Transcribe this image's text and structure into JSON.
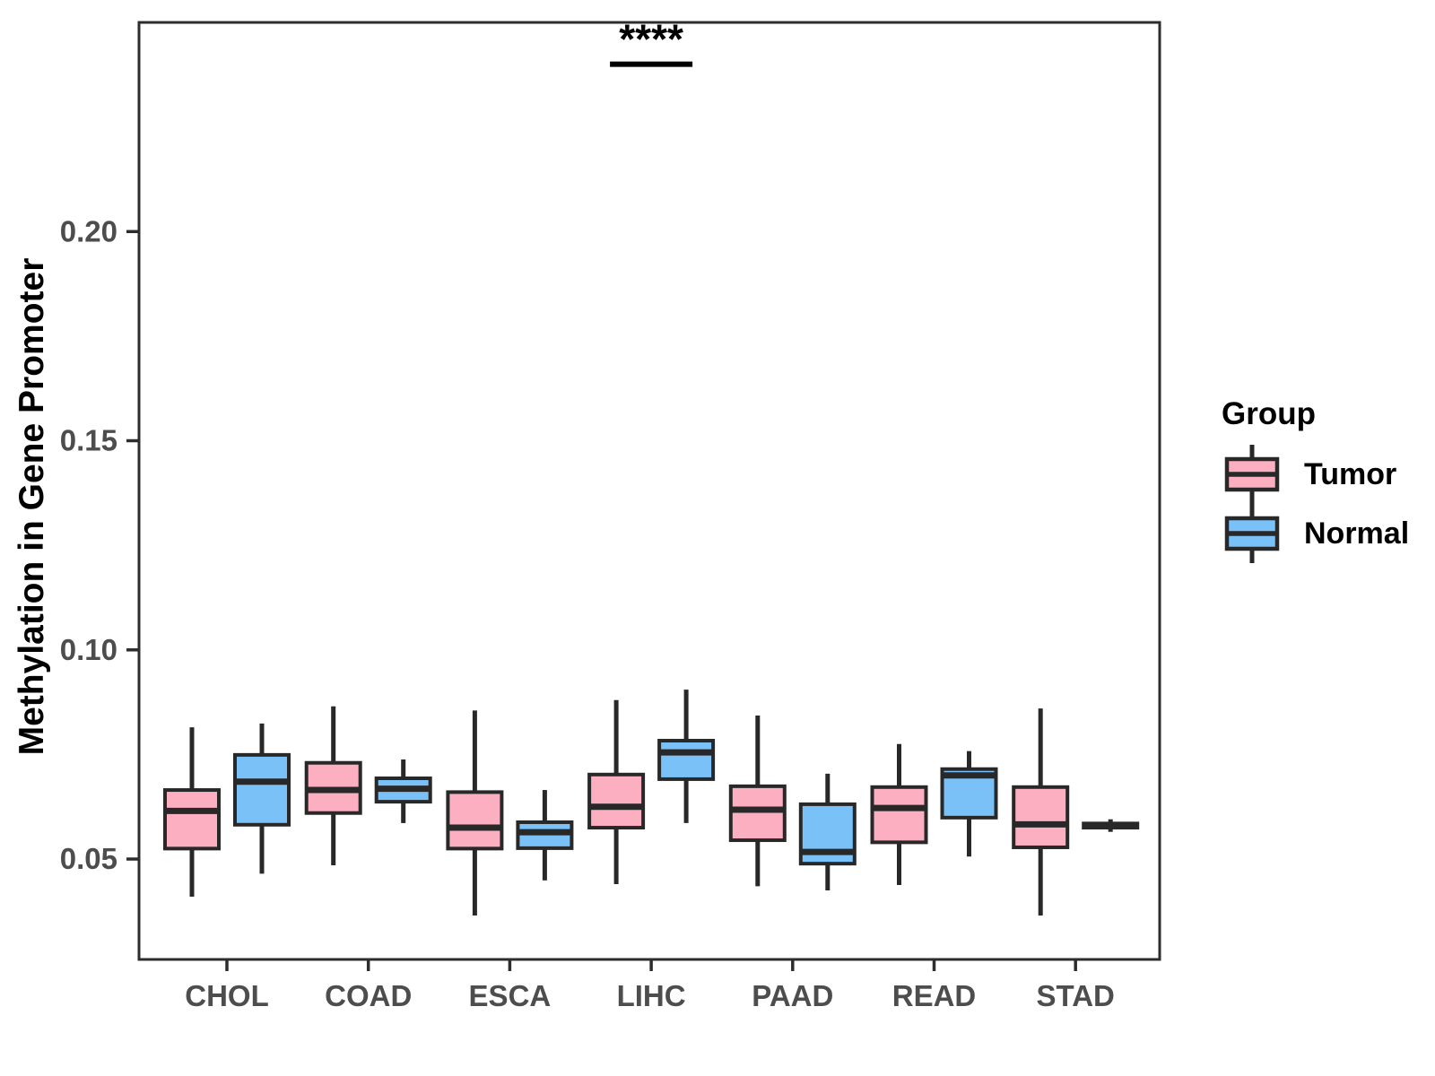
{
  "chart_data": {
    "type": "boxplot",
    "title": "",
    "xlabel": "",
    "ylabel": "Methylation in Gene Promoter",
    "ylim": [
      0.026,
      0.25
    ],
    "grid": false,
    "yticks": [
      {
        "value": 0.05,
        "label": "0.05"
      },
      {
        "value": 0.1,
        "label": "0.10"
      },
      {
        "value": 0.15,
        "label": "0.15"
      },
      {
        "value": 0.2,
        "label": "0.20"
      }
    ],
    "categories": [
      "CHOL",
      "COAD",
      "ESCA",
      "LIHC",
      "PAAD",
      "READ",
      "STAD"
    ],
    "series": [
      {
        "name": "Tumor",
        "color": "#FCAFC0",
        "boxes": [
          {
            "min": 0.041,
            "q1": 0.0525,
            "median": 0.0615,
            "q3": 0.0665,
            "max": 0.0815
          },
          {
            "min": 0.0485,
            "q1": 0.061,
            "median": 0.0665,
            "q3": 0.073,
            "max": 0.0865
          },
          {
            "min": 0.0365,
            "q1": 0.0525,
            "median": 0.0575,
            "q3": 0.066,
            "max": 0.0855
          },
          {
            "min": 0.044,
            "q1": 0.0575,
            "median": 0.0625,
            "q3": 0.0702,
            "max": 0.088
          },
          {
            "min": 0.0435,
            "q1": 0.0545,
            "median": 0.0618,
            "q3": 0.0674,
            "max": 0.0843
          },
          {
            "min": 0.0438,
            "q1": 0.054,
            "median": 0.0622,
            "q3": 0.0672,
            "max": 0.0775
          },
          {
            "min": 0.0365,
            "q1": 0.0528,
            "median": 0.0583,
            "q3": 0.0672,
            "max": 0.086
          }
        ]
      },
      {
        "name": "Normal",
        "color": "#79C1F7",
        "boxes": [
          {
            "min": 0.0465,
            "q1": 0.0582,
            "median": 0.0685,
            "q3": 0.0749,
            "max": 0.0824
          },
          {
            "min": 0.0586,
            "q1": 0.0637,
            "median": 0.0668,
            "q3": 0.0693,
            "max": 0.0738
          },
          {
            "min": 0.0449,
            "q1": 0.0526,
            "median": 0.0564,
            "q3": 0.0588,
            "max": 0.0665
          },
          {
            "min": 0.0586,
            "q1": 0.0691,
            "median": 0.0755,
            "q3": 0.0783,
            "max": 0.0905
          },
          {
            "min": 0.0425,
            "q1": 0.0489,
            "median": 0.0517,
            "q3": 0.0631,
            "max": 0.0704
          },
          {
            "min": 0.0506,
            "q1": 0.0599,
            "median": 0.07,
            "q3": 0.0715,
            "max": 0.0758
          },
          {
            "min": 0.0565,
            "q1": 0.0575,
            "median": 0.058,
            "q3": 0.0585,
            "max": 0.0595
          }
        ]
      }
    ],
    "annotation": {
      "text": "****",
      "category": "LIHC",
      "category_index": 3,
      "bar_y": 0.24
    },
    "legend": {
      "title": "Group",
      "position": "right"
    }
  },
  "colors": {
    "axis_text": "#4d4d4d",
    "axis_line": "#2d2d2d",
    "box_stroke": "#282828",
    "annotation_color": "#000000"
  }
}
